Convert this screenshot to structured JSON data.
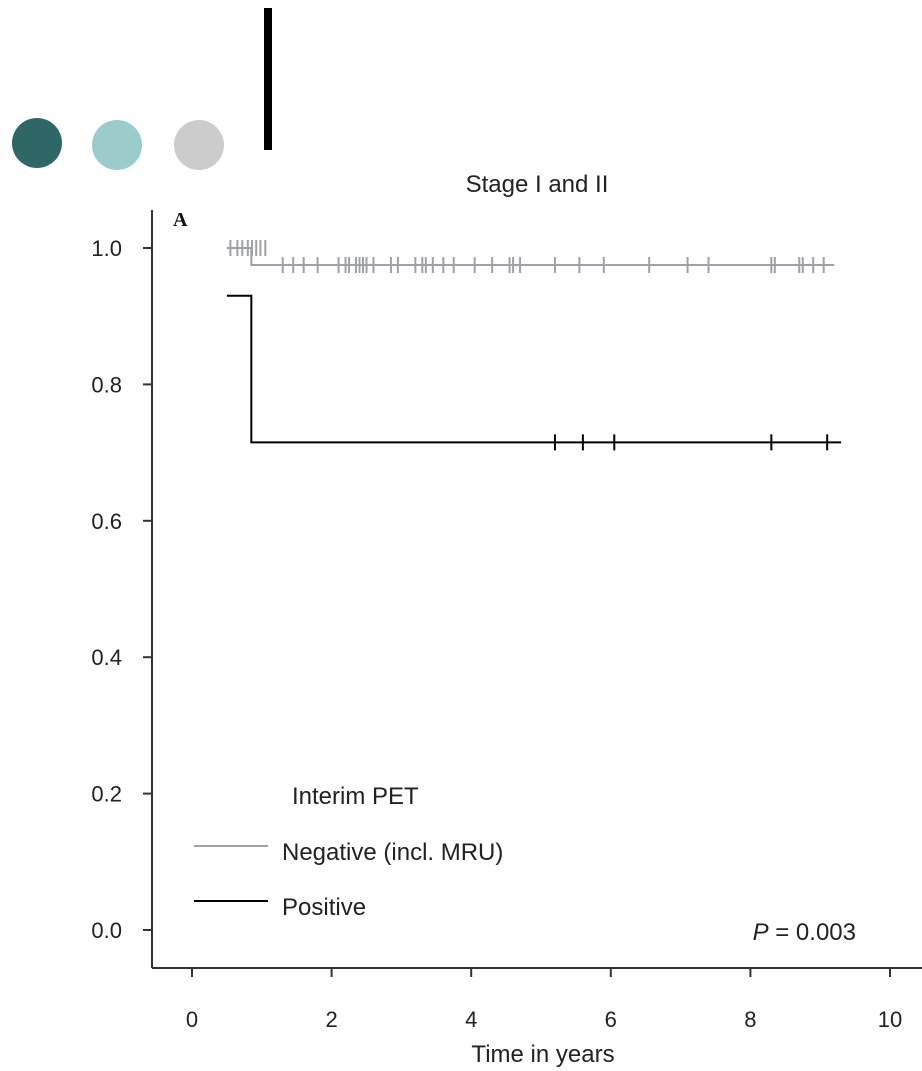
{
  "decorations": {
    "circle_colors": [
      "#2f6666",
      "#9ccbcb",
      "#cccccc"
    ],
    "bar_color": "#000000"
  },
  "chart_data": {
    "type": "line",
    "subtype": "kaplan-meier",
    "title": "Stage I and II",
    "panel_label": "A",
    "xlabel": "Time in years",
    "ylabel": "",
    "xlim": [
      0,
      10
    ],
    "ylim": [
      0,
      1
    ],
    "x_ticks": [
      0,
      2,
      4,
      6,
      8,
      10
    ],
    "x_tick_labels": [
      "0",
      "2",
      "4",
      "6",
      "8",
      "10"
    ],
    "y_ticks": [
      0.0,
      0.2,
      0.4,
      0.6,
      0.8,
      1.0
    ],
    "y_tick_labels": [
      "0.0",
      "0.2",
      "0.4",
      "0.6",
      "0.8",
      "1.0"
    ],
    "grid": false,
    "legend": {
      "title": "Interim PET",
      "placement": "bottom-left",
      "entries": [
        "Negative (incl. MRU)",
        "Positive"
      ]
    },
    "annotation": {
      "italic": "P",
      "rest": " = 0.003"
    },
    "series": [
      {
        "name": "Negative (incl. MRU)",
        "color": "#a0a0a8",
        "steps": [
          [
            0.5,
            1.0
          ],
          [
            0.85,
            1.0
          ],
          [
            0.85,
            0.975
          ],
          [
            9.2,
            0.975
          ]
        ],
        "censor": [
          [
            0.55,
            1.0
          ],
          [
            0.65,
            1.0
          ],
          [
            0.72,
            1.0
          ],
          [
            0.8,
            1.0
          ],
          [
            0.86,
            1.0
          ],
          [
            0.92,
            1.0
          ],
          [
            0.98,
            1.0
          ],
          [
            1.05,
            1.0
          ],
          [
            1.3,
            0.975
          ],
          [
            1.45,
            0.975
          ],
          [
            1.6,
            0.975
          ],
          [
            1.8,
            0.975
          ],
          [
            2.1,
            0.975
          ],
          [
            2.2,
            0.975
          ],
          [
            2.25,
            0.975
          ],
          [
            2.35,
            0.975
          ],
          [
            2.4,
            0.975
          ],
          [
            2.45,
            0.975
          ],
          [
            2.5,
            0.975
          ],
          [
            2.6,
            0.975
          ],
          [
            2.85,
            0.975
          ],
          [
            2.95,
            0.975
          ],
          [
            3.2,
            0.975
          ],
          [
            3.3,
            0.975
          ],
          [
            3.35,
            0.975
          ],
          [
            3.45,
            0.975
          ],
          [
            3.6,
            0.975
          ],
          [
            3.75,
            0.975
          ],
          [
            4.05,
            0.975
          ],
          [
            4.3,
            0.975
          ],
          [
            4.55,
            0.975
          ],
          [
            4.6,
            0.975
          ],
          [
            4.7,
            0.975
          ],
          [
            5.2,
            0.975
          ],
          [
            5.55,
            0.975
          ],
          [
            5.9,
            0.975
          ],
          [
            6.55,
            0.975
          ],
          [
            7.1,
            0.975
          ],
          [
            7.4,
            0.975
          ],
          [
            8.3,
            0.975
          ],
          [
            8.35,
            0.975
          ],
          [
            8.7,
            0.975
          ],
          [
            8.75,
            0.975
          ],
          [
            8.9,
            0.975
          ],
          [
            9.05,
            0.975
          ]
        ]
      },
      {
        "name": "Positive",
        "color": "#000000",
        "steps": [
          [
            0.5,
            0.93
          ],
          [
            0.85,
            0.93
          ],
          [
            0.85,
            0.715
          ],
          [
            9.3,
            0.715
          ]
        ],
        "censor": [
          [
            5.2,
            0.715
          ],
          [
            5.6,
            0.715
          ],
          [
            6.05,
            0.715
          ],
          [
            8.3,
            0.715
          ],
          [
            9.1,
            0.715
          ]
        ]
      }
    ]
  }
}
